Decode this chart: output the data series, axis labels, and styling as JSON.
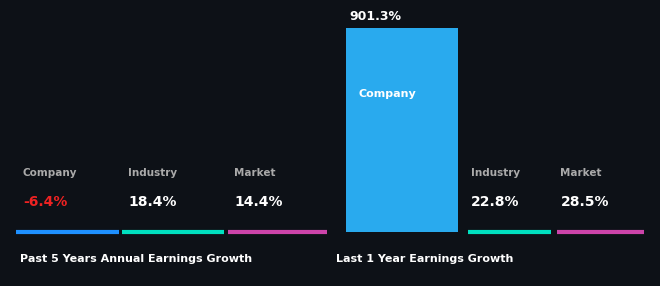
{
  "background_color": "#0d1117",
  "panel1": {
    "title": "Past 5 Years Annual Earnings Growth",
    "company_label": "Company",
    "company_value": "-6.4%",
    "industry_label": "Industry",
    "industry_value": "18.4%",
    "market_label": "Market",
    "market_value": "14.4%",
    "company_color": "#1e90ff",
    "industry_color": "#00e0c0",
    "market_color": "#cc44aa",
    "value_color_company": "#ee2222",
    "value_color_others": "#ffffff",
    "label_color": "#aaaaaa"
  },
  "panel2": {
    "title": "Last 1 Year Earnings Growth",
    "company_label": "Company",
    "company_value": "901.3%",
    "industry_label": "Industry",
    "industry_value": "22.8%",
    "market_label": "Market",
    "market_value": "28.5%",
    "bar_color": "#29aaee",
    "industry_color": "#00e0c0",
    "market_color": "#cc44aa",
    "value_color": "#ffffff",
    "label_color": "#aaaaaa"
  }
}
